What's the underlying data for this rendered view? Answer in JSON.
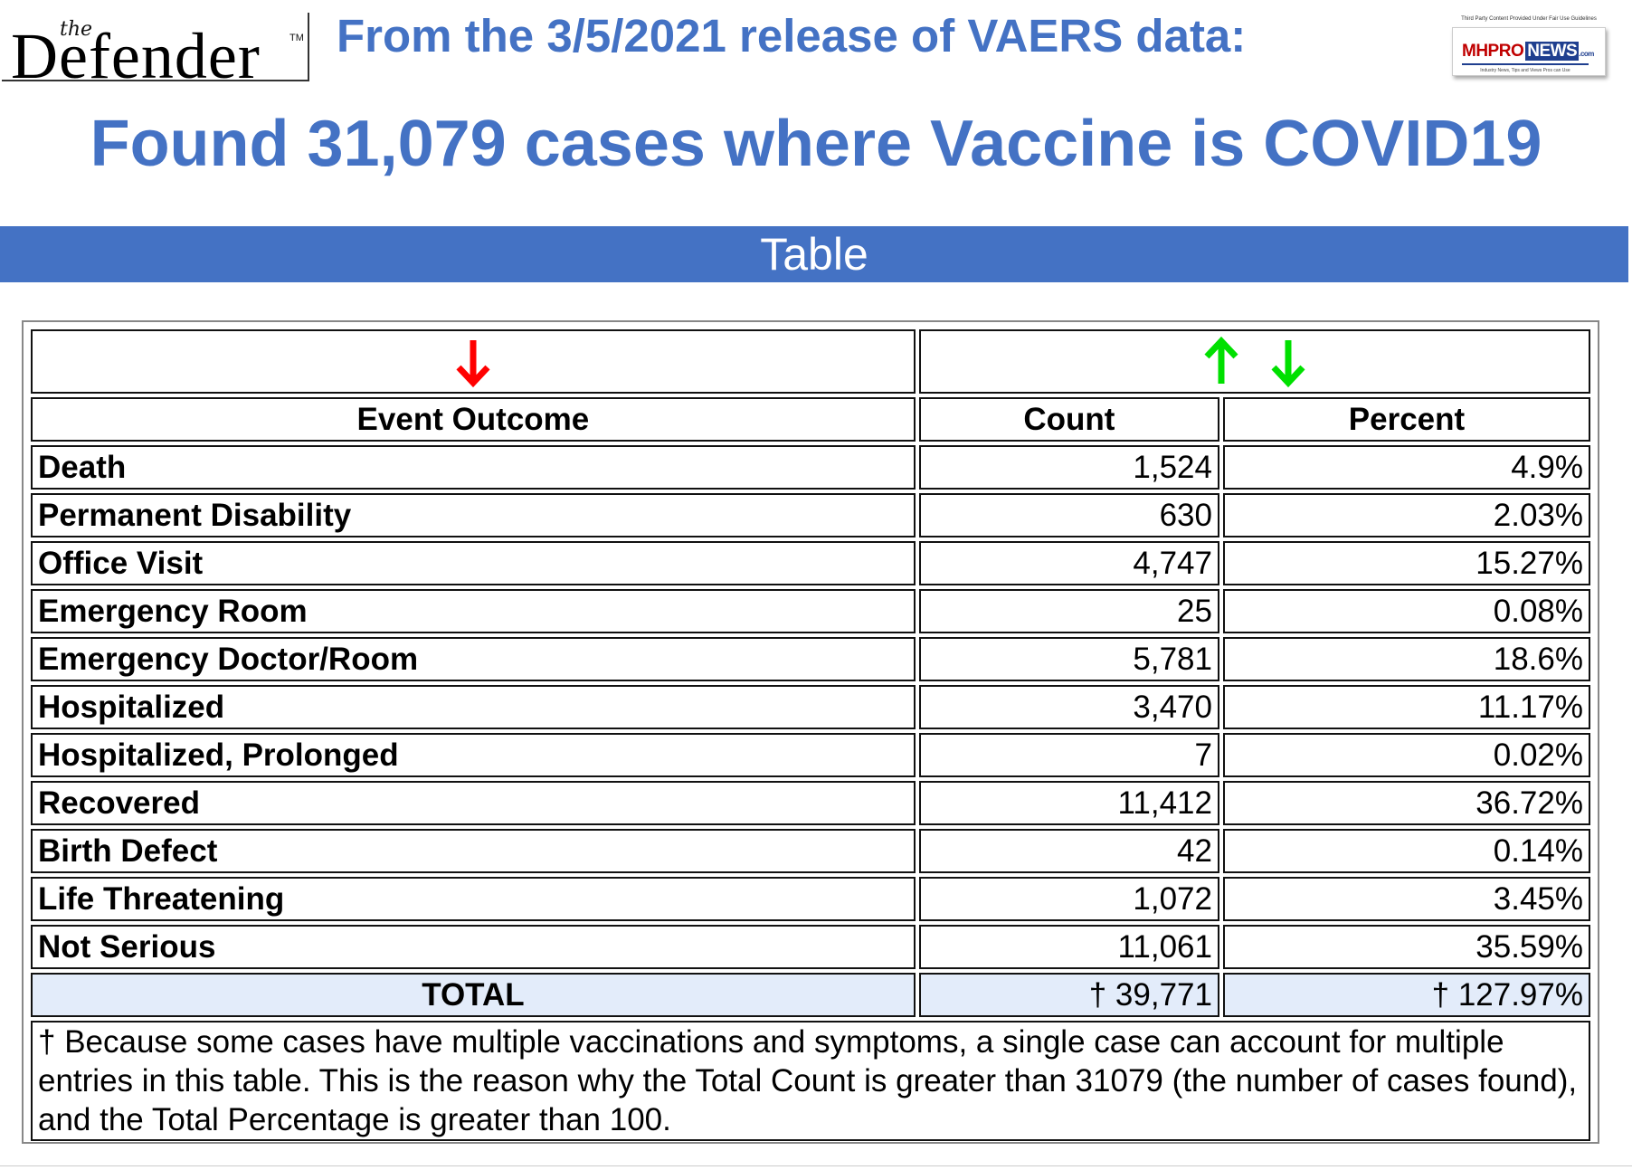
{
  "logo": {
    "the": "the",
    "name": "Defender",
    "tm": "TM"
  },
  "subtitle": "From the 3/5/2021 release of VAERS data:",
  "brand": {
    "fine_print": "Third Party Content Provided Under Fair Use Guidelines",
    "mh": "MHPRO",
    "news": "NEWS",
    "com": ".com",
    "tagline": "Industry News, Tips and Views Pros can Use"
  },
  "headline": "Found 31,079 cases where Vaccine is COVID19",
  "banner": "Table",
  "table": {
    "headers": {
      "outcome": "Event Outcome",
      "count": "Count",
      "percent": "Percent"
    },
    "rows": [
      {
        "outcome": "Death",
        "count": "1,524",
        "percent": "4.9%"
      },
      {
        "outcome": "Permanent Disability",
        "count": "630",
        "percent": "2.03%"
      },
      {
        "outcome": "Office Visit",
        "count": "4,747",
        "percent": "15.27%"
      },
      {
        "outcome": "Emergency Room",
        "count": "25",
        "percent": "0.08%"
      },
      {
        "outcome": "Emergency Doctor/Room",
        "count": "5,781",
        "percent": "18.6%"
      },
      {
        "outcome": "Hospitalized",
        "count": "3,470",
        "percent": "11.17%"
      },
      {
        "outcome": "Hospitalized, Prolonged",
        "count": "7",
        "percent": "0.02%"
      },
      {
        "outcome": "Recovered",
        "count": "11,412",
        "percent": "36.72%"
      },
      {
        "outcome": "Birth Defect",
        "count": "42",
        "percent": "0.14%"
      },
      {
        "outcome": "Life Threatening",
        "count": "1,072",
        "percent": "3.45%"
      },
      {
        "outcome": "Not Serious",
        "count": "11,061",
        "percent": "35.59%"
      }
    ],
    "total": {
      "label": "TOTAL",
      "count": "† 39,771",
      "percent": "† 127.97%"
    },
    "note": "† Because some cases have multiple vaccinations and symptoms, a single case can account for multiple entries in this table. This is the reason why the Total Count is greater than 31079 (the number of cases found), and the Total Percentage is greater than 100.",
    "sort_arrow_colors": {
      "down_red": "#ff0000",
      "up_green": "#00e000",
      "down_green": "#00e000"
    }
  }
}
